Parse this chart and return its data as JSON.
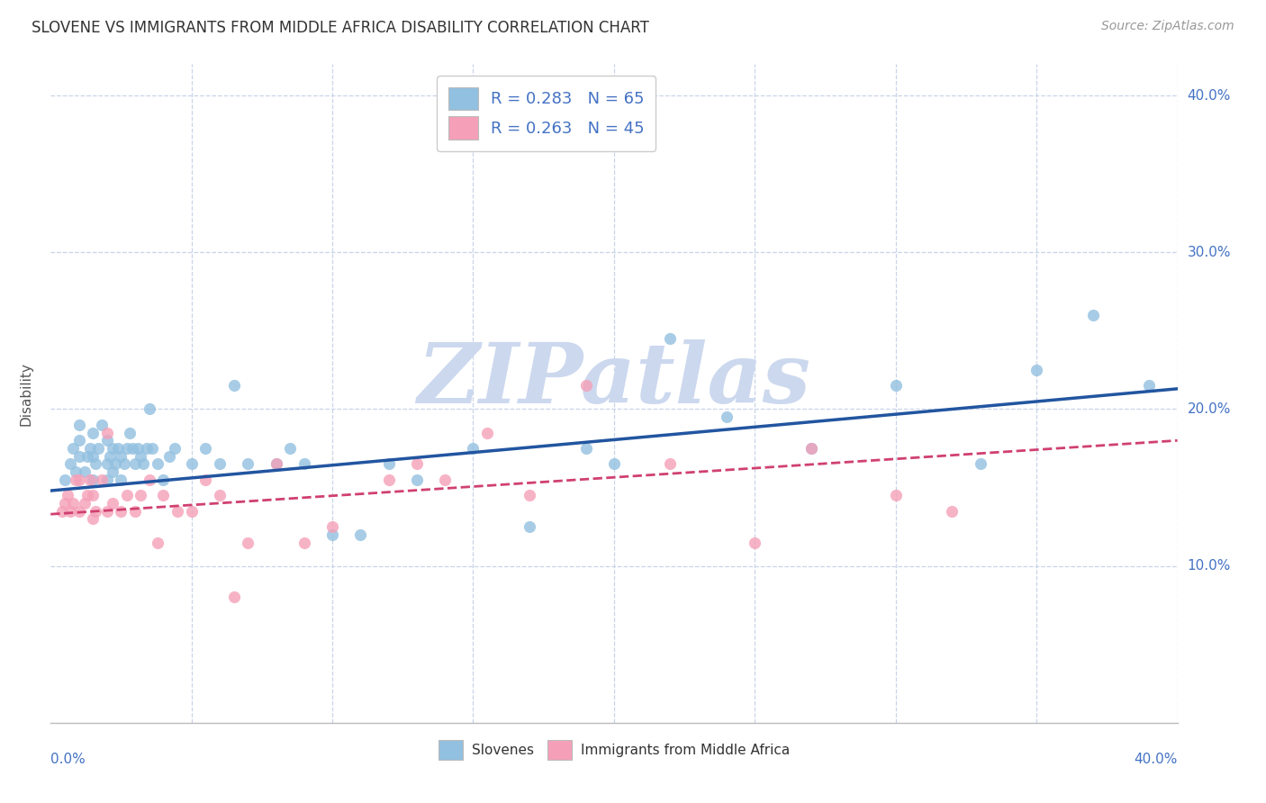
{
  "title": "SLOVENE VS IMMIGRANTS FROM MIDDLE AFRICA DISABILITY CORRELATION CHART",
  "source": "Source: ZipAtlas.com",
  "ylabel": "Disability",
  "xlim": [
    0.0,
    0.4
  ],
  "ylim": [
    0.0,
    0.42
  ],
  "watermark": "ZIPatlas",
  "blue_color": "#92c0e0",
  "pink_color": "#f5a0b8",
  "blue_line_color": "#2255a0",
  "pink_line_color": "#d04070",
  "slovene_points_x": [
    0.005,
    0.007,
    0.008,
    0.009,
    0.01,
    0.01,
    0.01,
    0.012,
    0.013,
    0.014,
    0.015,
    0.015,
    0.015,
    0.016,
    0.017,
    0.018,
    0.02,
    0.02,
    0.02,
    0.021,
    0.022,
    0.022,
    0.023,
    0.024,
    0.025,
    0.025,
    0.026,
    0.027,
    0.028,
    0.029,
    0.03,
    0.031,
    0.032,
    0.033,
    0.034,
    0.035,
    0.036,
    0.038,
    0.04,
    0.042,
    0.044,
    0.05,
    0.055,
    0.06,
    0.065,
    0.07,
    0.08,
    0.085,
    0.09,
    0.1,
    0.11,
    0.12,
    0.13,
    0.15,
    0.17,
    0.19,
    0.2,
    0.22,
    0.24,
    0.27,
    0.3,
    0.33,
    0.35,
    0.37,
    0.39
  ],
  "slovene_points_y": [
    0.155,
    0.165,
    0.175,
    0.16,
    0.17,
    0.18,
    0.19,
    0.16,
    0.17,
    0.175,
    0.155,
    0.17,
    0.185,
    0.165,
    0.175,
    0.19,
    0.155,
    0.165,
    0.18,
    0.17,
    0.16,
    0.175,
    0.165,
    0.175,
    0.155,
    0.17,
    0.165,
    0.175,
    0.185,
    0.175,
    0.165,
    0.175,
    0.17,
    0.165,
    0.175,
    0.2,
    0.175,
    0.165,
    0.155,
    0.17,
    0.175,
    0.165,
    0.175,
    0.165,
    0.215,
    0.165,
    0.165,
    0.175,
    0.165,
    0.12,
    0.12,
    0.165,
    0.155,
    0.175,
    0.125,
    0.175,
    0.165,
    0.245,
    0.195,
    0.175,
    0.215,
    0.165,
    0.225,
    0.26,
    0.215
  ],
  "immigrants_points_x": [
    0.004,
    0.005,
    0.006,
    0.007,
    0.008,
    0.009,
    0.01,
    0.01,
    0.012,
    0.013,
    0.014,
    0.015,
    0.015,
    0.016,
    0.018,
    0.02,
    0.02,
    0.022,
    0.025,
    0.027,
    0.03,
    0.032,
    0.035,
    0.038,
    0.04,
    0.045,
    0.05,
    0.055,
    0.06,
    0.065,
    0.07,
    0.08,
    0.09,
    0.1,
    0.12,
    0.13,
    0.14,
    0.155,
    0.17,
    0.19,
    0.22,
    0.25,
    0.27,
    0.3,
    0.32
  ],
  "immigrants_points_y": [
    0.135,
    0.14,
    0.145,
    0.135,
    0.14,
    0.155,
    0.135,
    0.155,
    0.14,
    0.145,
    0.155,
    0.13,
    0.145,
    0.135,
    0.155,
    0.135,
    0.185,
    0.14,
    0.135,
    0.145,
    0.135,
    0.145,
    0.155,
    0.115,
    0.145,
    0.135,
    0.135,
    0.155,
    0.145,
    0.08,
    0.115,
    0.165,
    0.115,
    0.125,
    0.155,
    0.165,
    0.155,
    0.185,
    0.145,
    0.215,
    0.165,
    0.115,
    0.175,
    0.145,
    0.135
  ],
  "slovene_trendline": [
    0.0,
    0.4,
    0.148,
    0.213
  ],
  "immigrants_trendline": [
    0.0,
    0.4,
    0.133,
    0.18
  ],
  "background_color": "#ffffff",
  "grid_color": "#c8d4e8",
  "title_color": "#333333",
  "ytick_color": "#4472c4",
  "watermark_color": "#ccd8ee"
}
